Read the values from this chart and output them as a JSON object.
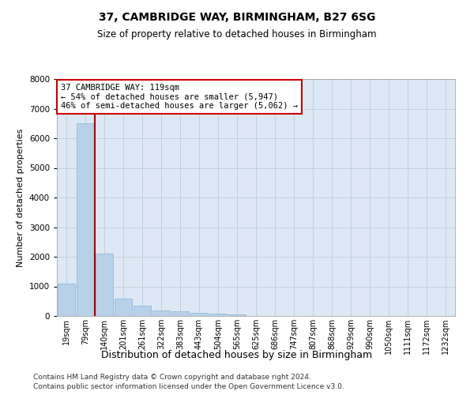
{
  "title1": "37, CAMBRIDGE WAY, BIRMINGHAM, B27 6SG",
  "title2": "Size of property relative to detached houses in Birmingham",
  "xlabel": "Distribution of detached houses by size in Birmingham",
  "ylabel": "Number of detached properties",
  "footer1": "Contains HM Land Registry data © Crown copyright and database right 2024.",
  "footer2": "Contains public sector information licensed under the Open Government Licence v3.0.",
  "bar_labels": [
    "19sqm",
    "79sqm",
    "140sqm",
    "201sqm",
    "261sqm",
    "322sqm",
    "383sqm",
    "443sqm",
    "504sqm",
    "565sqm",
    "625sqm",
    "686sqm",
    "747sqm",
    "807sqm",
    "868sqm",
    "929sqm",
    "990sqm",
    "1050sqm",
    "1111sqm",
    "1172sqm",
    "1232sqm"
  ],
  "bar_values": [
    1100,
    6500,
    2100,
    600,
    350,
    180,
    150,
    100,
    70,
    50,
    0,
    0,
    0,
    0,
    0,
    0,
    0,
    0,
    0,
    0,
    0
  ],
  "bar_color": "#b8d0e8",
  "bar_edge_color": "#8ab0d0",
  "grid_color": "#c0d0e0",
  "background_color": "#dde8f4",
  "annotation_text": "37 CAMBRIDGE WAY: 119sqm\n← 54% of detached houses are smaller (5,947)\n46% of semi-detached houses are larger (5,062) →",
  "vline_x": 1.5,
  "vline_color": "#aa0000",
  "ylim": [
    0,
    8000
  ],
  "yticks": [
    0,
    1000,
    2000,
    3000,
    4000,
    5000,
    6000,
    7000,
    8000
  ],
  "annotation_box_facecolor": "#ffffff",
  "annotation_box_edgecolor": "#cc0000"
}
